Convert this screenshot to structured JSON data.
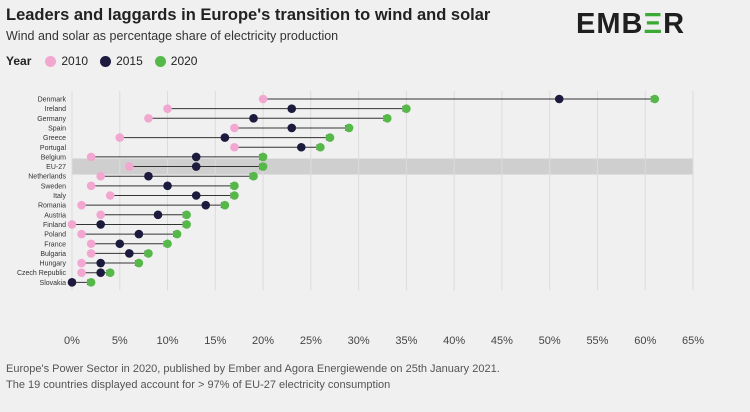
{
  "header": {
    "title": "Leaders and laggards in Europe's transition to wind and solar",
    "subtitle": "Wind and solar as percentage share of electricity production"
  },
  "logo": {
    "left": "EMB",
    "mark": "Ξ",
    "right": "R"
  },
  "legend": {
    "title": "Year",
    "items": [
      {
        "label": "2010",
        "color": "#f2a7d0"
      },
      {
        "label": "2015",
        "color": "#1c1a3d"
      },
      {
        "label": "2020",
        "color": "#55b848"
      }
    ]
  },
  "footer": {
    "line1": "Europe's Power Sector in 2020, published by Ember and Agora Energiewende on 25th January 2021.",
    "line2": "The 19 countries displayed account for > 97% of EU-27 electricity consumption"
  },
  "chart_data": {
    "type": "scatter",
    "xlim": [
      0,
      65
    ],
    "x_ticks": [
      "0%",
      "5%",
      "10%",
      "15%",
      "20%",
      "25%",
      "30%",
      "35%",
      "40%",
      "45%",
      "50%",
      "55%",
      "60%",
      "65%"
    ],
    "highlight": "EU-27",
    "categories": [
      "Denmark",
      "Ireland",
      "Germany",
      "Spain",
      "Greece",
      "Portugal",
      "Belgium",
      "EU-27",
      "Netherlands",
      "Sweden",
      "Italy",
      "Romania",
      "Austria",
      "Finland",
      "Poland",
      "France",
      "Bulgaria",
      "Hungary",
      "Czech Republic",
      "Slovakia"
    ],
    "series": [
      {
        "name": "2010",
        "color": "#f2a7d0",
        "values": [
          20,
          10,
          8,
          17,
          5,
          17,
          2,
          6,
          3,
          2,
          4,
          1,
          3,
          0,
          1,
          2,
          2,
          1,
          1,
          0
        ]
      },
      {
        "name": "2015",
        "color": "#1c1a3d",
        "values": [
          51,
          23,
          19,
          23,
          16,
          24,
          13,
          13,
          8,
          10,
          13,
          14,
          9,
          3,
          7,
          5,
          6,
          3,
          3,
          0
        ]
      },
      {
        "name": "2020",
        "color": "#55b848",
        "values": [
          61,
          35,
          33,
          29,
          27,
          26,
          20,
          20,
          19,
          17,
          17,
          16,
          12,
          12,
          11,
          10,
          8,
          7,
          4,
          2
        ]
      }
    ]
  }
}
